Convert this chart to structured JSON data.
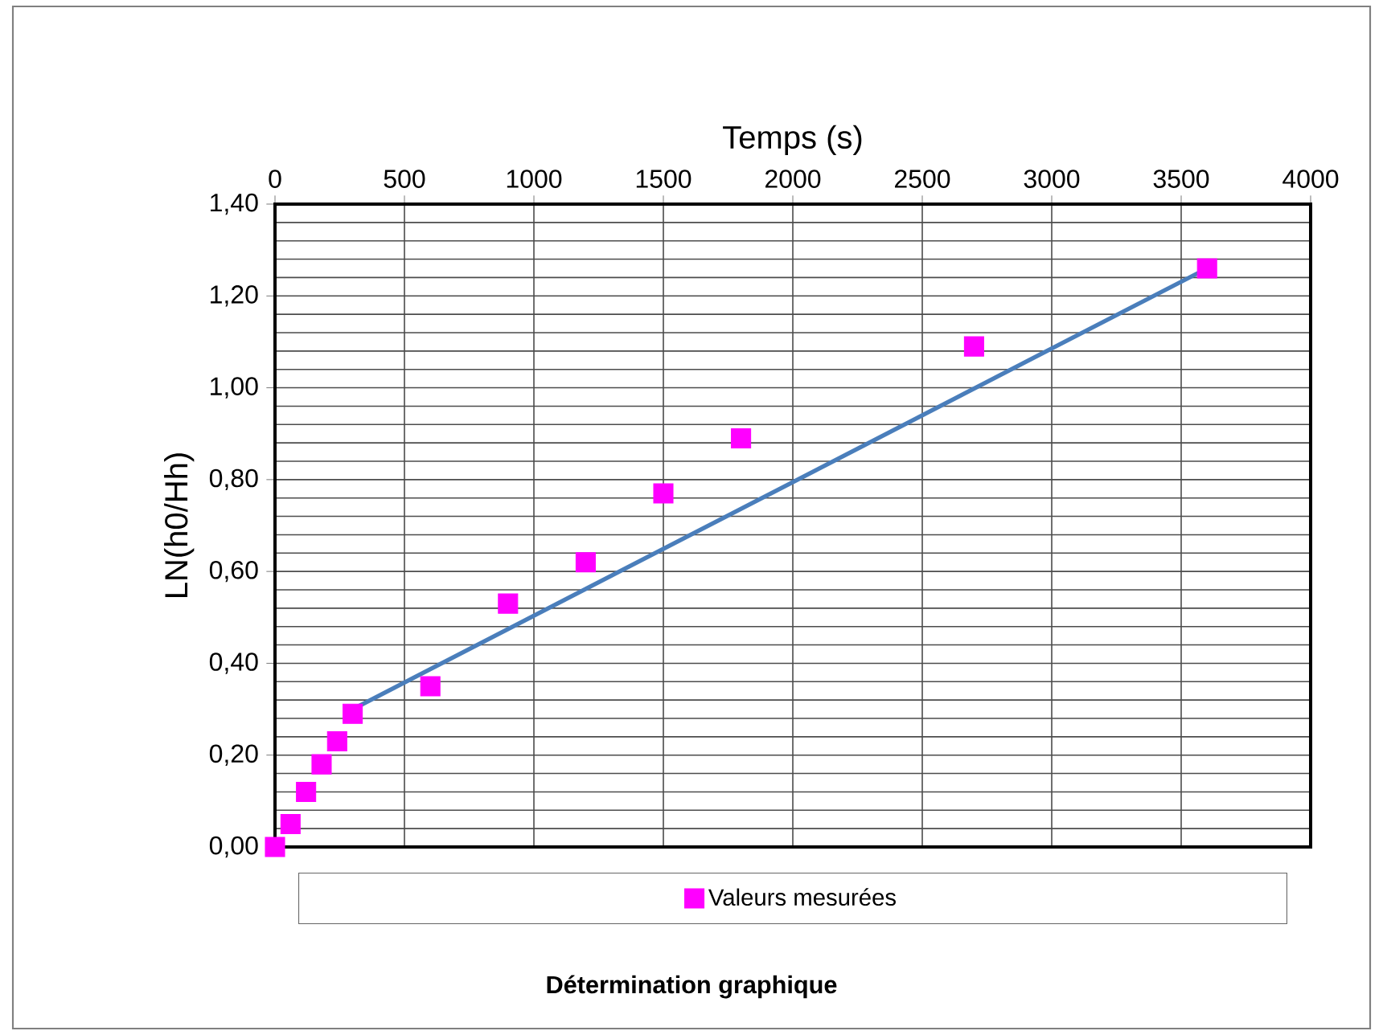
{
  "chart_data": {
    "type": "scatter",
    "title": "Détermination graphique",
    "xlabel": "Temps (s)",
    "ylabel": "LN(h0/Hh)",
    "xlim": [
      0,
      4000
    ],
    "xticks": [
      0,
      500,
      1000,
      1500,
      2000,
      2500,
      3000,
      3500,
      4000
    ],
    "ylim": [
      0,
      1.4
    ],
    "yticks": [
      {
        "value": 0,
        "label": "0,00"
      },
      {
        "value": 0.2,
        "label": "0,20"
      },
      {
        "value": 0.4,
        "label": "0,40"
      },
      {
        "value": 0.6,
        "label": "0,60"
      },
      {
        "value": 0.8,
        "label": "0,80"
      },
      {
        "value": 1.0,
        "label": "1,00"
      },
      {
        "value": 1.2,
        "label": "1,20"
      },
      {
        "value": 1.4,
        "label": "1,40"
      }
    ],
    "grid": true,
    "legend": "bottom",
    "series": [
      {
        "name": "Valeurs mesurées",
        "marker": "square",
        "color": "#ff00ff",
        "x": [
          0,
          60,
          120,
          180,
          240,
          300,
          600,
          900,
          1200,
          1500,
          1800,
          2700,
          3600
        ],
        "values": [
          0,
          0.05,
          0.12,
          0.18,
          0.23,
          0.29,
          0.35,
          0.53,
          0.62,
          0.77,
          0.89,
          1.09,
          1.26
        ]
      },
      {
        "type": "line",
        "marker": "none",
        "color": "#4a7ebb",
        "x": [
          300,
          3600
        ],
        "values": [
          0.3,
          1.26
        ]
      }
    ]
  }
}
